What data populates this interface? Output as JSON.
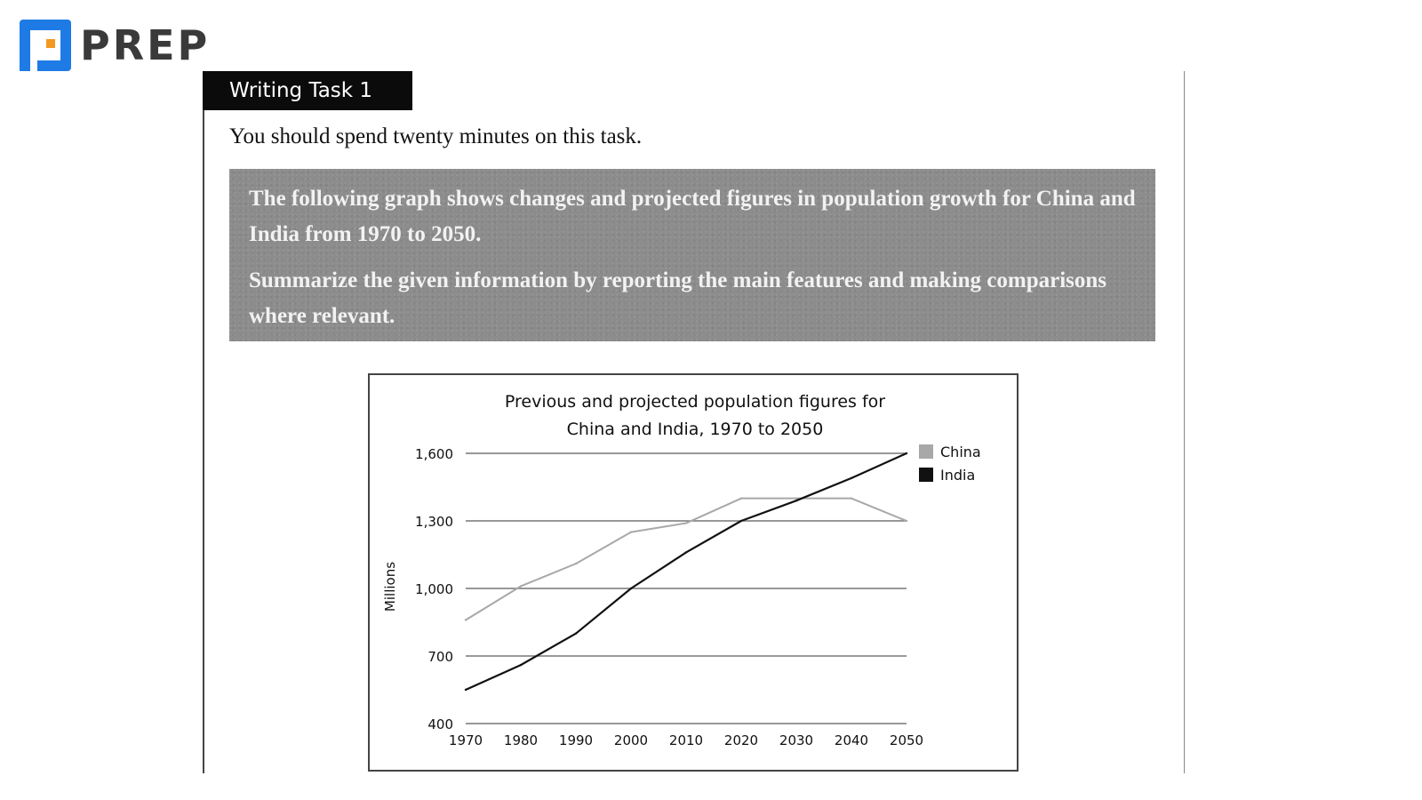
{
  "brand": {
    "name": "PREP",
    "accent": "#1e7be6"
  },
  "task": {
    "label": "Writing Task 1",
    "instruction": "You should spend twenty minutes on this task.",
    "prompt_line1": "The following graph shows changes and projected figures in population growth for China and India from 1970 to 2050.",
    "prompt_line2": "Summarize the given information by reporting the main features and making comparisons where relevant."
  },
  "chart_data": {
    "type": "line",
    "title_line1": "Previous and projected population figures for",
    "title_line2": "China and India, 1970 to 2050",
    "xlabel": "",
    "ylabel": "Millions",
    "x": [
      1970,
      1980,
      1990,
      2000,
      2010,
      2020,
      2030,
      2040,
      2050
    ],
    "ylim": [
      400,
      1600
    ],
    "yticks": [
      400,
      700,
      1000,
      1300,
      1600
    ],
    "ytick_labels": [
      "400",
      "700",
      "1,000",
      "1,300",
      "1,600"
    ],
    "grid": "horizontal",
    "legend_position": "top-right",
    "series": [
      {
        "name": "China",
        "color": "#a8a8a8",
        "values": [
          860,
          1010,
          1110,
          1250,
          1290,
          1400,
          1400,
          1400,
          1300
        ]
      },
      {
        "name": "India",
        "color": "#111111",
        "values": [
          550,
          660,
          800,
          1000,
          1160,
          1300,
          1390,
          1490,
          1600
        ]
      }
    ]
  }
}
